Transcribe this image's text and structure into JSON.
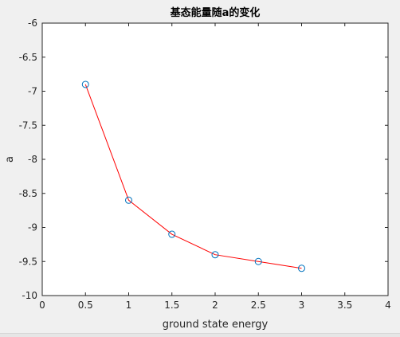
{
  "chart_data": {
    "type": "line",
    "title": "基态能量随a的变化",
    "xlabel": "ground state energy",
    "ylabel": "a",
    "xlim": [
      0,
      4
    ],
    "ylim": [
      -10,
      -6
    ],
    "xticks": [
      0,
      0.5,
      1,
      1.5,
      2,
      2.5,
      3,
      3.5,
      4
    ],
    "xtick_labels": [
      "0",
      "0.5",
      "1",
      "1.5",
      "2",
      "2.5",
      "3",
      "3.5",
      "4"
    ],
    "yticks": [
      -6,
      -6.5,
      -7,
      -7.5,
      -8,
      -8.5,
      -9,
      -9.5,
      -10
    ],
    "ytick_labels": [
      "-6",
      "-6.5",
      "-7",
      "-7.5",
      "-8",
      "-8.5",
      "-9",
      "-9.5",
      "-10"
    ],
    "grid": false,
    "series": [
      {
        "x": [
          0.5,
          1,
          1.5,
          2,
          2.5,
          3
        ],
        "y": [
          -6.9,
          -8.6,
          -9.1,
          -9.4,
          -9.5,
          -9.6
        ],
        "line_color": "#ff0000",
        "marker": "circle",
        "marker_color": "#0072bd"
      }
    ]
  }
}
